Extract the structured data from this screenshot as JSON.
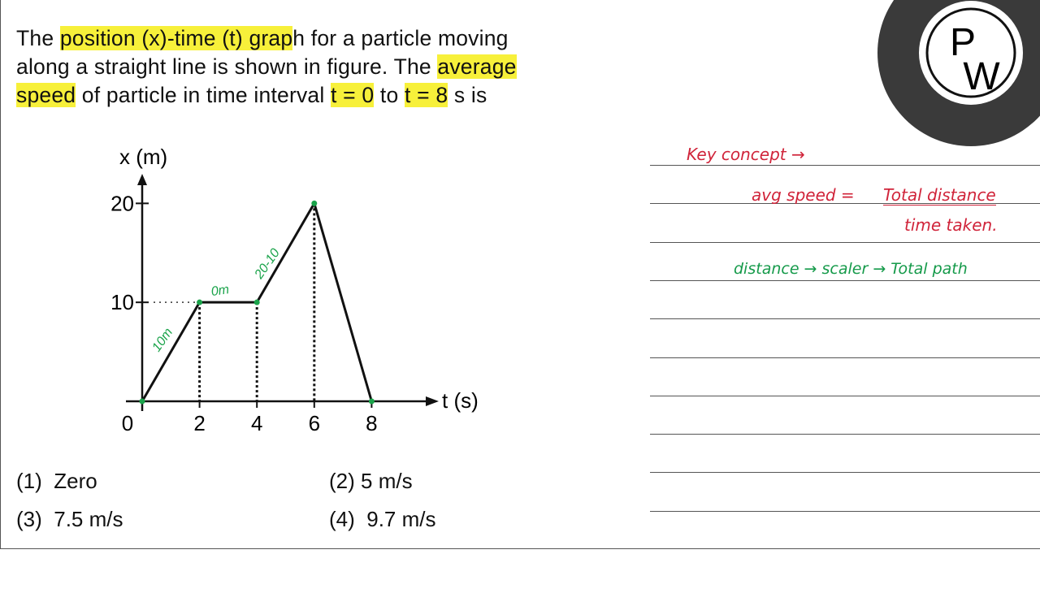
{
  "question": {
    "lines": [
      [
        {
          "text": "The ",
          "highlight": false
        },
        {
          "text": "position (x)-time (t) grap",
          "highlight": true
        },
        {
          "text": "h for a particle moving",
          "highlight": false
        }
      ],
      [
        {
          "text": "along a straight line is shown in figure. The ",
          "highlight": false
        },
        {
          "text": "average",
          "highlight": true
        }
      ],
      [
        {
          "text": "speed",
          "highlight": true
        },
        {
          "text": " of particle in time interval ",
          "highlight": false
        },
        {
          "text": "t = 0",
          "highlight": true
        },
        {
          "text": " to ",
          "highlight": false
        },
        {
          "text": "t = 8",
          "highlight": true
        },
        {
          "text": " s is",
          "highlight": false
        }
      ]
    ]
  },
  "chart_data": {
    "type": "line",
    "x_label": "t (s)",
    "y_label": "x (m)",
    "x": [
      0,
      2,
      4,
      6,
      8
    ],
    "values": [
      0,
      10,
      10,
      20,
      0
    ],
    "color": "#111111",
    "point_color": "#1aa34a",
    "xlim": [
      0,
      10
    ],
    "ylim": [
      0,
      22
    ],
    "xticks": [
      0,
      2,
      4,
      6,
      8
    ],
    "yticks": [
      10,
      20
    ],
    "annotations": [
      "10m",
      "0m",
      "20-10"
    ]
  },
  "options": [
    {
      "number": "(1)",
      "text": "Zero"
    },
    {
      "number": "(2)",
      "text": "5 m/s"
    },
    {
      "number": "(3)",
      "text": "7.5 m/s"
    },
    {
      "number": "(4)",
      "text": "9.7 m/s"
    }
  ],
  "notes": {
    "key": "Key concept →",
    "avg": "avg speed =",
    "numerator": "Total distance",
    "denominator": "time taken.",
    "distance": "distance → scaler → Total path"
  },
  "logo": {
    "top": "P",
    "bottom": "W"
  }
}
